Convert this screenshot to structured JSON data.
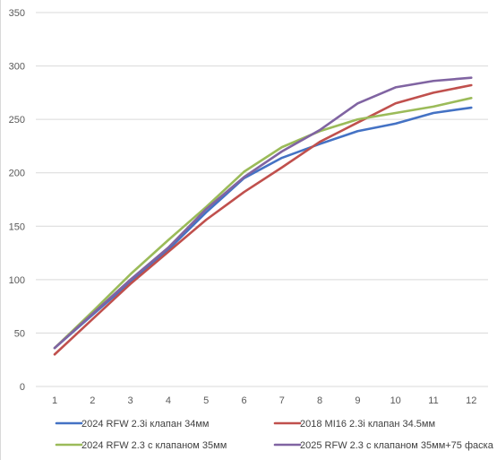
{
  "chart_data": {
    "type": "line",
    "title": "",
    "xlabel": "",
    "ylabel": "",
    "x": [
      1,
      2,
      3,
      4,
      5,
      6,
      7,
      8,
      9,
      10,
      11,
      12
    ],
    "ylim": [
      0,
      350
    ],
    "yticks": [
      0,
      50,
      100,
      150,
      200,
      250,
      300,
      350
    ],
    "grid": true,
    "legend_position": "bottom",
    "series": [
      {
        "name": "2024 RFW 2.3i клапан 34мм",
        "color": "#4472c4",
        "values": [
          36,
          67,
          98,
          128,
          163,
          195,
          214,
          227,
          239,
          246,
          256,
          261
        ]
      },
      {
        "name": "2018 MI16 2.3i клапан 34.5мм",
        "color": "#c0504d",
        "values": [
          30,
          63,
          96,
          126,
          156,
          182,
          205,
          229,
          247,
          265,
          275,
          282
        ]
      },
      {
        "name": "2024 RFW 2.3 с клапаном 35мм",
        "color": "#9bbb59",
        "values": [
          36,
          70,
          105,
          137,
          168,
          201,
          224,
          239,
          250,
          256,
          262,
          270
        ]
      },
      {
        "name": "2025 RFW 2.3 с клапаном 35мм+75 фаска",
        "color": "#8064a2",
        "values": [
          36,
          68,
          100,
          130,
          166,
          196,
          220,
          240,
          265,
          280,
          286,
          289
        ]
      }
    ]
  }
}
